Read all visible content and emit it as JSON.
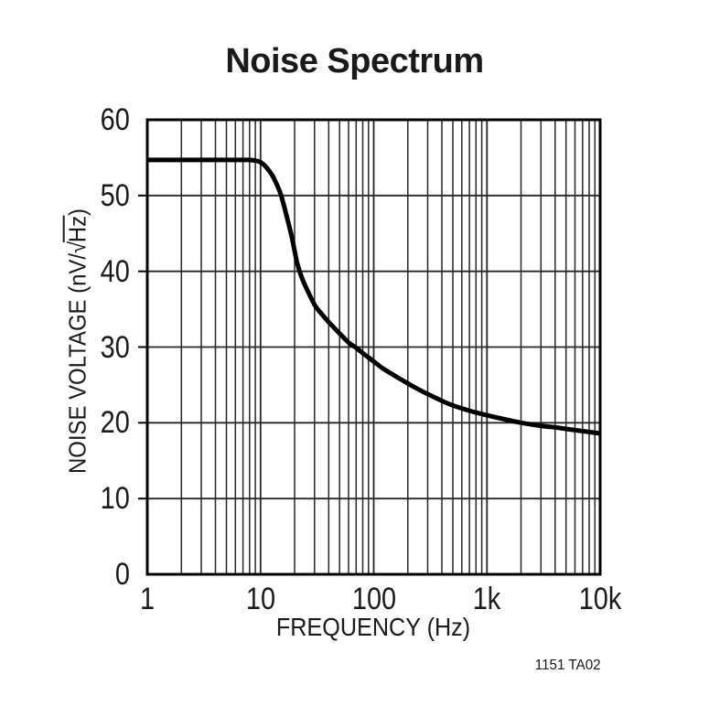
{
  "page": {
    "title": "Noise Spectrum",
    "note": "1151 TA02"
  },
  "chart_data": {
    "type": "line",
    "title": "Noise Spectrum",
    "xlabel": "FREQUENCY (Hz)",
    "ylabel": {
      "prefix": "NOISE VOLTAGE (nV/",
      "radical": "√",
      "overline": "Hz",
      "suffix": ")"
    },
    "x_scale": "log",
    "xlim": [
      1,
      10000
    ],
    "ylim": [
      0,
      60
    ],
    "grid": "both",
    "legend": "none",
    "x_ticks": [
      {
        "v": 1,
        "label": "1"
      },
      {
        "v": 10,
        "label": "10"
      },
      {
        "v": 100,
        "label": "100"
      },
      {
        "v": 1000,
        "label": "1k"
      },
      {
        "v": 10000,
        "label": "10k"
      }
    ],
    "y_ticks": [
      {
        "v": 0,
        "label": "0"
      },
      {
        "v": 10,
        "label": "10"
      },
      {
        "v": 20,
        "label": "20"
      },
      {
        "v": 30,
        "label": "30"
      },
      {
        "v": 40,
        "label": "40"
      },
      {
        "v": 50,
        "label": "50"
      },
      {
        "v": 60,
        "label": "60"
      }
    ],
    "series": [
      {
        "name": "noise voltage",
        "units": "nV/√Hz vs Hz",
        "points": [
          [
            1,
            54.7
          ],
          [
            2,
            54.7
          ],
          [
            3,
            54.7
          ],
          [
            4,
            54.7
          ],
          [
            5,
            54.7
          ],
          [
            6,
            54.7
          ],
          [
            7,
            54.7
          ],
          [
            8,
            54.7
          ],
          [
            9,
            54.6
          ],
          [
            10,
            54.4
          ],
          [
            11,
            53.9
          ],
          [
            12,
            53.2
          ],
          [
            13,
            52.4
          ],
          [
            15,
            50.3
          ],
          [
            17,
            47.3
          ],
          [
            19,
            44.4
          ],
          [
            21,
            41.2
          ],
          [
            23,
            39.3
          ],
          [
            25,
            38.0
          ],
          [
            30,
            35.6
          ],
          [
            35,
            34.3
          ],
          [
            40,
            33.3
          ],
          [
            50,
            31.8
          ],
          [
            60,
            30.6
          ],
          [
            70,
            29.9
          ],
          [
            80,
            29.2
          ],
          [
            100,
            28.1
          ],
          [
            120,
            27.2
          ],
          [
            150,
            26.3
          ],
          [
            200,
            25.2
          ],
          [
            250,
            24.4
          ],
          [
            300,
            23.8
          ],
          [
            400,
            22.9
          ],
          [
            500,
            22.3
          ],
          [
            700,
            21.6
          ],
          [
            1000,
            21.0
          ],
          [
            1500,
            20.4
          ],
          [
            2000,
            20.0
          ],
          [
            3000,
            19.6
          ],
          [
            4000,
            19.4
          ],
          [
            5000,
            19.2
          ],
          [
            7000,
            18.9
          ],
          [
            10000,
            18.6
          ]
        ]
      }
    ],
    "colors": {
      "background": "#ffffff",
      "text": "#1a1a1a",
      "frame": "#000000",
      "grid": "#262626",
      "line": "#000000"
    }
  }
}
